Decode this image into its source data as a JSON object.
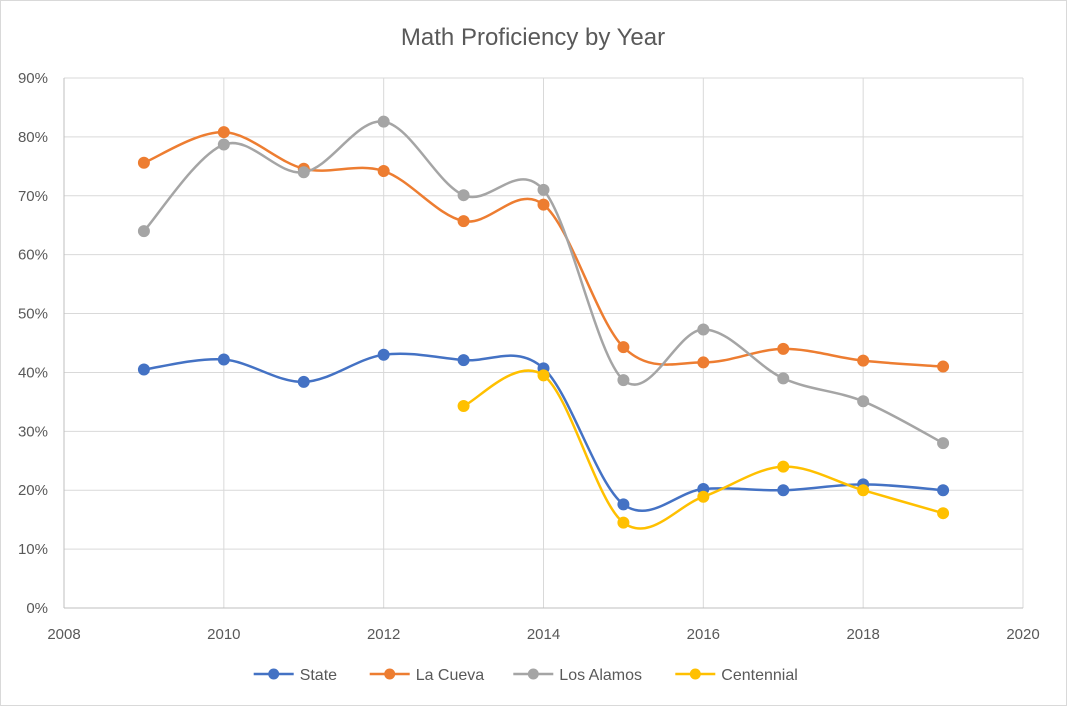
{
  "chart_data": {
    "type": "scatter",
    "title": "Math Proficiency by Year",
    "xlabel": "",
    "ylabel": "",
    "xlim": [
      2008,
      2020
    ],
    "ylim": [
      0,
      0.9
    ],
    "xticks": [
      2008,
      2010,
      2012,
      2014,
      2016,
      2018,
      2020
    ],
    "xtick_labels": [
      "2008",
      "2010",
      "2012",
      "2014",
      "2016",
      "2018",
      "2020"
    ],
    "yticks": [
      0,
      0.1,
      0.2,
      0.3,
      0.4,
      0.5,
      0.6,
      0.7,
      0.8,
      0.9
    ],
    "ytick_labels": [
      "0%",
      "10%",
      "20%",
      "30%",
      "40%",
      "50%",
      "60%",
      "70%",
      "80%",
      "90%"
    ],
    "grid": true,
    "legend_position": "bottom",
    "smoothed_lines": true,
    "series": [
      {
        "name": "State",
        "color": "#4472C4",
        "x": [
          2009,
          2010,
          2011,
          2012,
          2013,
          2014,
          2015,
          2016,
          2017,
          2018,
          2019
        ],
        "y": [
          0.405,
          0.422,
          0.384,
          0.43,
          0.421,
          0.407,
          0.176,
          0.202,
          0.2,
          0.21,
          0.2
        ]
      },
      {
        "name": "La Cueva",
        "color": "#ED7D31",
        "x": [
          2009,
          2010,
          2011,
          2012,
          2013,
          2014,
          2015,
          2016,
          2017,
          2018,
          2019
        ],
        "y": [
          0.756,
          0.808,
          0.746,
          0.742,
          0.657,
          0.685,
          0.443,
          0.417,
          0.44,
          0.42,
          0.41
        ]
      },
      {
        "name": "Los Alamos",
        "color": "#A5A5A5",
        "x": [
          2009,
          2010,
          2011,
          2012,
          2013,
          2014,
          2015,
          2016,
          2017,
          2018,
          2019
        ],
        "y": [
          0.64,
          0.787,
          0.74,
          0.826,
          0.701,
          0.71,
          0.387,
          0.473,
          0.39,
          0.351,
          0.28
        ]
      },
      {
        "name": "Centennial",
        "color": "#FFC000",
        "x": [
          2013,
          2014,
          2015,
          2016,
          2017,
          2018,
          2019
        ],
        "y": [
          0.343,
          0.395,
          0.145,
          0.189,
          0.24,
          0.2,
          0.161
        ]
      }
    ]
  }
}
